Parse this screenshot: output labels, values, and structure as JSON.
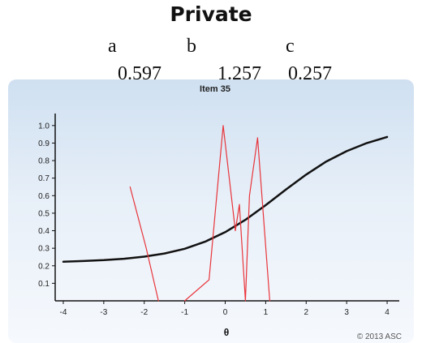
{
  "header": {
    "title": "Private",
    "params": [
      {
        "name": "a",
        "value": "0.597"
      },
      {
        "name": "b",
        "value": "1.257"
      },
      {
        "name": "c",
        "value": "0.257"
      }
    ]
  },
  "chart_data": {
    "type": "line",
    "title": "Item 35",
    "xlabel": "θ",
    "ylabel": "",
    "xlim": [
      -4.2,
      4.3
    ],
    "ylim": [
      0,
      1.05
    ],
    "xticks": [
      "-4",
      "-3",
      "-2",
      "-1",
      "0",
      "1",
      "2",
      "3",
      "4"
    ],
    "yticks": [
      "0.1",
      "0.2",
      "0.3",
      "0.4",
      "0.5",
      "0.6",
      "0.7",
      "0.8",
      "0.9",
      "1.0"
    ],
    "grid": false,
    "copyright": "© 2013 ASC",
    "colors": {
      "model": "#111111",
      "observed": "#e8343a"
    },
    "series": [
      {
        "role": "model",
        "x": [
          -4,
          -3.5,
          -3,
          -2.5,
          -2,
          -1.5,
          -1,
          -0.5,
          0,
          0.5,
          1,
          1.5,
          2,
          2.5,
          3,
          3.5,
          4
        ],
        "values": [
          0.223,
          0.227,
          0.232,
          0.24,
          0.252,
          0.27,
          0.297,
          0.337,
          0.392,
          0.462,
          0.546,
          0.635,
          0.72,
          0.795,
          0.854,
          0.9,
          0.935
        ]
      },
      {
        "role": "observed",
        "x": [
          -2.35,
          -1.95,
          -1.65
        ],
        "values": [
          0.65,
          0.3,
          0.0
        ]
      },
      {
        "role": "observed",
        "x": [
          -1.0,
          -0.4,
          -0.05,
          0.25,
          0.35,
          0.5,
          0.6,
          0.8,
          1.1
        ],
        "values": [
          0.0,
          0.12,
          1.0,
          0.4,
          0.55,
          0.0,
          0.6,
          0.93,
          0.0
        ]
      }
    ]
  }
}
